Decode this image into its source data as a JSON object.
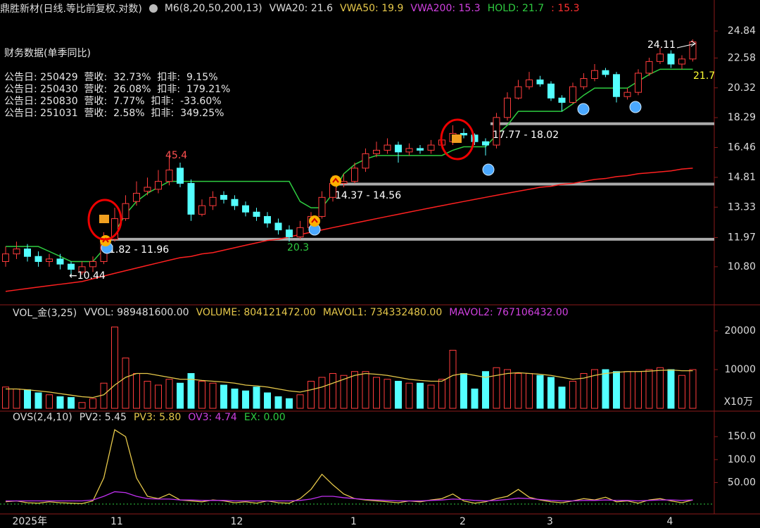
{
  "chart_data": {
    "type": "candlestick",
    "header": [
      {
        "text": "鼎胜新材(日线.等比前复权.对数)",
        "color": "#dddddd"
      },
      {
        "text": "M6(8,20,50,200,13)",
        "color": "#dddddd"
      },
      {
        "text": "VWA20: 21.6",
        "color": "#dddddd"
      },
      {
        "text": "VWA50: 19.9",
        "color": "#e6c84a"
      },
      {
        "text": "VWA200: 15.3",
        "color": "#d040e0"
      },
      {
        "text": "HOLD: 21.7",
        "color": "#2ecc40"
      },
      {
        "text": ": 15.3",
        "color": "#ff3030"
      }
    ],
    "finance": {
      "title": "财务数据(单季同比)",
      "rows": [
        "公告日: 250429  营收:  32.73%  扣非:  9.15%",
        "公告日: 250430  营收:  26.08%  扣非:  179.21%",
        "公告日: 250830  营收:  7.77%  扣非:  -33.60%",
        "公告日: 251031  营收:  2.58%  扣非:  349.25%"
      ]
    },
    "categories": [
      null,
      "2025年",
      null,
      null,
      null,
      null,
      null,
      null,
      null,
      null,
      "11",
      null,
      null,
      null,
      null,
      null,
      null,
      null,
      null,
      null,
      null,
      "12",
      null,
      null,
      null,
      null,
      null,
      null,
      null,
      null,
      null,
      null,
      "1",
      null,
      null,
      null,
      null,
      null,
      null,
      null,
      null,
      null,
      "2",
      null,
      null,
      null,
      null,
      null,
      null,
      null,
      "3",
      null,
      null,
      null,
      null,
      null,
      null,
      null,
      null,
      null,
      null,
      "4",
      null,
      null
    ],
    "open": [
      11.0,
      11.3,
      11.5,
      11.2,
      11.0,
      11.1,
      10.9,
      10.6,
      10.8,
      11.0,
      11.9,
      12.8,
      13.6,
      14.1,
      14.2,
      14.6,
      15.3,
      14.5,
      13.0,
      13.4,
      13.9,
      13.7,
      13.4,
      13.1,
      12.9,
      12.6,
      12.3,
      12.0,
      12.4,
      12.9,
      13.8,
      14.5,
      14.6,
      15.3,
      16.1,
      16.3,
      16.6,
      16.2,
      16.4,
      16.3,
      16.6,
      16.8,
      17.3,
      17.2,
      16.8,
      16.6,
      18.3,
      19.6,
      20.4,
      20.9,
      20.6,
      19.6,
      19.3,
      20.4,
      21.0,
      21.6,
      21.3,
      19.7,
      20.0,
      21.4,
      22.3,
      22.9,
      22.1,
      22.5
    ],
    "high": [
      11.6,
      11.8,
      11.7,
      11.4,
      11.3,
      11.3,
      11.0,
      11.0,
      11.2,
      12.2,
      13.3,
      13.9,
      14.6,
      14.8,
      15.2,
      16.0,
      15.6,
      14.7,
      13.7,
      14.1,
      14.1,
      13.9,
      13.6,
      13.3,
      13.1,
      12.8,
      12.5,
      12.7,
      13.1,
      14.1,
      14.9,
      15.0,
      15.6,
      16.4,
      16.8,
      17.0,
      16.8,
      16.7,
      16.6,
      16.9,
      17.3,
      17.8,
      17.6,
      17.3,
      17.0,
      18.6,
      20.0,
      20.9,
      21.5,
      21.2,
      20.8,
      19.8,
      20.7,
      21.4,
      22.1,
      21.8,
      21.5,
      20.3,
      21.7,
      22.6,
      23.4,
      23.2,
      22.8,
      24.11
    ],
    "low": [
      10.8,
      11.1,
      11.0,
      10.8,
      10.8,
      10.7,
      10.44,
      10.5,
      10.6,
      10.9,
      11.8,
      12.7,
      13.4,
      13.9,
      14.0,
      14.4,
      14.3,
      12.7,
      12.9,
      13.2,
      13.5,
      13.2,
      12.9,
      12.7,
      12.4,
      12.1,
      11.8,
      11.9,
      12.2,
      12.8,
      13.6,
      14.3,
      14.5,
      15.1,
      15.9,
      16.1,
      15.6,
      16.0,
      16.1,
      16.1,
      16.4,
      16.6,
      17.0,
      16.6,
      16.0,
      16.4,
      18.1,
      19.5,
      20.2,
      20.4,
      19.4,
      18.7,
      19.2,
      20.2,
      20.8,
      21.1,
      19.3,
      19.5,
      19.8,
      21.2,
      22.1,
      21.8,
      21.7,
      22.3
    ],
    "close": [
      11.3,
      11.5,
      11.2,
      11.0,
      11.1,
      10.9,
      10.7,
      10.8,
      11.0,
      11.9,
      12.8,
      13.5,
      14.0,
      14.3,
      14.6,
      15.2,
      14.5,
      13.0,
      13.4,
      13.8,
      13.7,
      13.4,
      13.1,
      12.9,
      12.6,
      12.3,
      12.0,
      12.4,
      12.9,
      13.8,
      14.5,
      14.6,
      15.3,
      16.1,
      16.3,
      16.6,
      16.2,
      16.4,
      16.3,
      16.6,
      16.9,
      17.3,
      17.2,
      16.8,
      16.6,
      18.3,
      19.6,
      20.4,
      20.9,
      20.6,
      19.6,
      19.3,
      20.4,
      21.0,
      21.6,
      21.3,
      19.7,
      20.0,
      21.4,
      22.3,
      22.9,
      22.1,
      22.5,
      23.9
    ],
    "up_color": "#ff3c3c",
    "down_color": "#54ffff",
    "series": [
      {
        "name": "HOLD",
        "color": "#2ecc40",
        "values": [
          11.6,
          11.6,
          11.6,
          11.6,
          11.4,
          11.2,
          11.0,
          11.0,
          11.0,
          11.5,
          12.2,
          13.0,
          13.6,
          14.0,
          14.3,
          14.6,
          14.6,
          14.6,
          14.6,
          14.6,
          14.6,
          14.6,
          14.6,
          14.6,
          14.6,
          14.6,
          14.6,
          13.6,
          13.3,
          13.3,
          14.0,
          15.0,
          15.5,
          15.8,
          16.0,
          16.0,
          16.0,
          16.0,
          16.0,
          16.0,
          16.0,
          16.3,
          16.5,
          16.5,
          16.5,
          17.2,
          17.8,
          18.7,
          18.7,
          18.7,
          18.7,
          18.7,
          19.2,
          19.8,
          20.3,
          20.3,
          20.3,
          20.3,
          20.8,
          21.3,
          21.7,
          21.7,
          21.7,
          21.7
        ]
      },
      {
        "name": "VWA200",
        "color": "#ff2020",
        "values": [
          9.9,
          9.95,
          10.0,
          10.05,
          10.1,
          10.15,
          10.2,
          10.25,
          10.35,
          10.45,
          10.55,
          10.65,
          10.75,
          10.85,
          10.95,
          11.05,
          11.15,
          11.2,
          11.3,
          11.35,
          11.45,
          11.55,
          11.65,
          11.75,
          11.85,
          11.9,
          12.0,
          12.1,
          12.2,
          12.3,
          12.4,
          12.5,
          12.6,
          12.7,
          12.8,
          12.9,
          13.0,
          13.1,
          13.2,
          13.3,
          13.4,
          13.5,
          13.6,
          13.7,
          13.8,
          13.9,
          14.0,
          14.1,
          14.2,
          14.3,
          14.35,
          14.45,
          14.5,
          14.6,
          14.7,
          14.75,
          14.85,
          14.9,
          15.0,
          15.05,
          15.1,
          15.15,
          15.25,
          15.3
        ]
      }
    ],
    "levels": [
      11.9,
      14.46,
      17.9
    ],
    "level_color": "#aaaaaa",
    "annotations": [
      {
        "text": "24.11",
        "color": "#ffffff"
      },
      {
        "text": "21.7",
        "color": "#ffff33"
      },
      {
        "text": "45.4",
        "color": "#ff5050"
      },
      {
        "text": "14.37 - 14.56",
        "color": "#ffffff"
      },
      {
        "text": "17.77 - 18.02",
        "color": "#ffffff"
      },
      {
        "text": "1.82 - 11.96",
        "color": "#ffffff"
      },
      {
        "text": "20.3",
        "color": "#2ecc40"
      },
      {
        "text": "←10.44",
        "color": "#ffffff"
      }
    ],
    "ylim": [
      9.51,
      25.85
    ],
    "log_scale": true,
    "yticks": [
      24.84,
      22.58,
      20.32,
      18.29,
      16.46,
      14.81,
      13.33,
      11.97,
      {
        "value": 10.8,
        "label": "10.80"
      }
    ],
    "volume": {
      "header": [
        {
          "text": "VOL_金(3,25)",
          "color": "#dddddd"
        },
        {
          "text": "VVOL: 989481600.00",
          "color": "#dddddd"
        },
        {
          "text": "VOLUME: 804121472.00",
          "color": "#e6c84a"
        },
        {
          "text": "MAVOL1: 734332480.00",
          "color": "#e6c84a"
        },
        {
          "text": "MAVOL2: 767106432.00",
          "color": "#d040e0"
        }
      ],
      "values": [
        5500,
        5000,
        4800,
        4000,
        3500,
        3000,
        2800,
        1500,
        2500,
        6500,
        21000,
        13000,
        9000,
        7000,
        6000,
        7500,
        6500,
        9000,
        7000,
        6500,
        6000,
        5000,
        4500,
        5500,
        4000,
        3000,
        2500,
        3500,
        7000,
        8000,
        9000,
        8500,
        9500,
        9500,
        8000,
        7500,
        7000,
        6500,
        6500,
        6000,
        7500,
        15000,
        9000,
        5000,
        9500,
        10500,
        10000,
        9000,
        9000,
        8500,
        8000,
        5500,
        7000,
        9000,
        10000,
        10000,
        9500,
        9500,
        9500,
        10000,
        10500,
        10000,
        8500,
        10000
      ],
      "ma": {
        "name": "MAVOL1",
        "color": "#e6c84a",
        "values": [
          5000,
          5000,
          4800,
          4500,
          4200,
          3800,
          3400,
          3000,
          2800,
          3500,
          6000,
          8000,
          9000,
          9000,
          8500,
          8000,
          7500,
          7500,
          7200,
          7000,
          6800,
          6500,
          6000,
          5800,
          5500,
          5000,
          4500,
          4200,
          4800,
          5500,
          6500,
          7500,
          8500,
          9000,
          8800,
          8500,
          8000,
          7500,
          7200,
          7000,
          7000,
          8500,
          9000,
          8500,
          8000,
          8500,
          9000,
          9200,
          9000,
          8800,
          8500,
          8000,
          7500,
          7800,
          8500,
          9000,
          9300,
          9500,
          9500,
          9600,
          9800,
          9900,
          9700,
          9700
        ]
      },
      "ylim": [
        0,
        21450
      ],
      "yticks": [
        20000,
        10000
      ],
      "unit": "X10万"
    },
    "ovs": {
      "header": [
        {
          "text": "OVS(2,4,10)",
          "color": "#dddddd"
        },
        {
          "text": "PV2: 5.45",
          "color": "#dddddd"
        },
        {
          "text": "PV3: 5.80",
          "color": "#e6c84a"
        },
        {
          "text": "OV3: 4.74",
          "color": "#d040e0"
        },
        {
          "text": "EX: 0.00",
          "color": "#2ecc40"
        }
      ],
      "series": [
        {
          "name": "PV2",
          "color": "#e6c84a",
          "values": [
            8,
            10,
            6,
            5,
            8,
            6,
            5,
            4,
            10,
            60,
            165,
            150,
            60,
            20,
            15,
            25,
            12,
            10,
            8,
            12,
            10,
            6,
            8,
            5,
            10,
            6,
            5,
            15,
            35,
            68,
            45,
            25,
            15,
            12,
            10,
            8,
            6,
            10,
            8,
            12,
            15,
            25,
            10,
            5,
            8,
            15,
            20,
            35,
            18,
            12,
            8,
            6,
            10,
            15,
            12,
            18,
            8,
            10,
            5,
            12,
            15,
            10,
            6,
            12
          ]
        },
        {
          "name": "OV3",
          "color": "#c030f0",
          "values": [
            10,
            10,
            10,
            10,
            10,
            10,
            10,
            10,
            12,
            20,
            30,
            28,
            20,
            15,
            14,
            14,
            12,
            12,
            11,
            11,
            11,
            10,
            10,
            10,
            10,
            10,
            10,
            11,
            14,
            20,
            20,
            17,
            15,
            13,
            12,
            11,
            10,
            10,
            10,
            11,
            12,
            14,
            13,
            11,
            10,
            11,
            13,
            16,
            15,
            13,
            11,
            10,
            10,
            11,
            11,
            12,
            11,
            11,
            10,
            11,
            12,
            12,
            11,
            12
          ]
        }
      ],
      "ylim": [
        0,
        178
      ],
      "yticks": [
        {
          "value": 150,
          "label": "150.0"
        },
        {
          "value": 100,
          "label": "100.0"
        },
        {
          "value": 50,
          "label": "50.00"
        }
      ]
    }
  }
}
